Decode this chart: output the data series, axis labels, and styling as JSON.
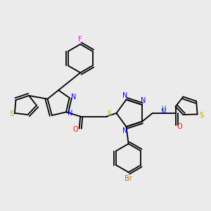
{
  "bg_color": "#ebebeb",
  "atom_colors": {
    "N": "#0000ff",
    "S": "#c8a000",
    "O": "#ff0000",
    "F": "#ff00ff",
    "Br": "#cc6600",
    "H": "#008b8b",
    "C": "#000000"
  },
  "figsize": [
    3.0,
    3.0
  ],
  "dpi": 100
}
